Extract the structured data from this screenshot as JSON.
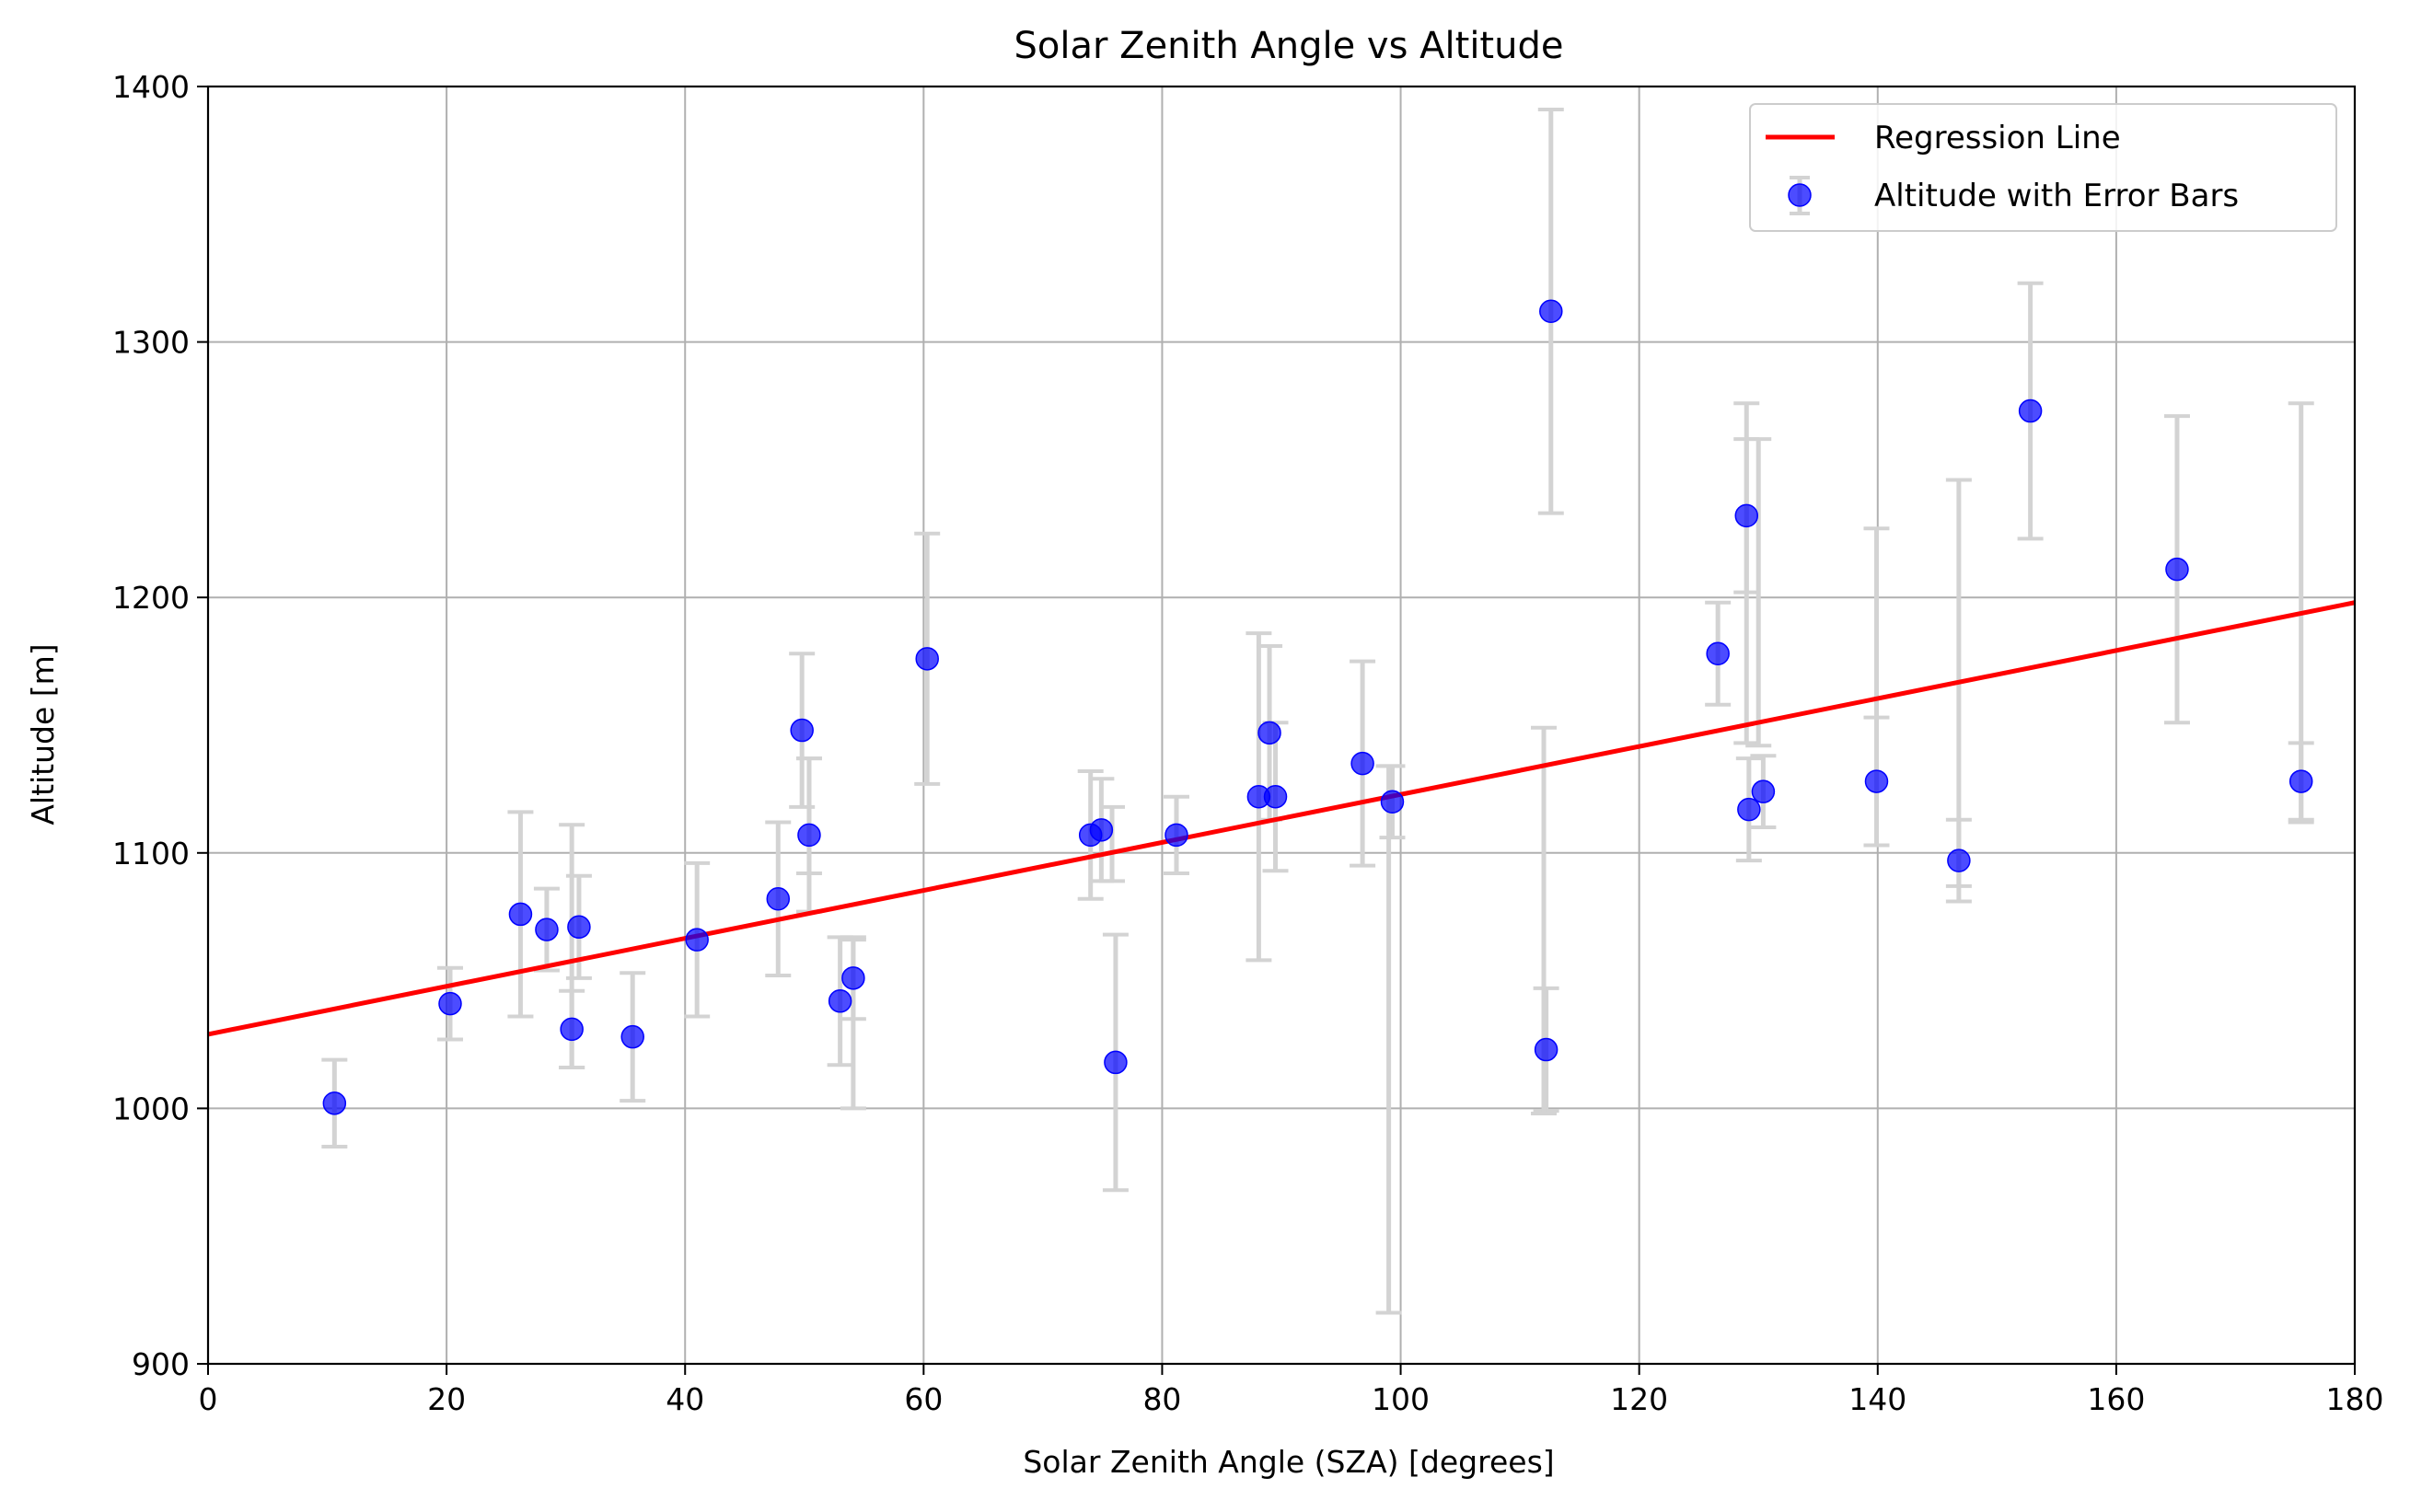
{
  "chart_data": {
    "type": "scatter",
    "title": "Solar Zenith Angle vs Altitude",
    "xlabel": "Solar Zenith Angle (SZA) [degrees]",
    "ylabel": "Altitude [m]",
    "xlim": [
      0,
      180
    ],
    "ylim": [
      900,
      1400
    ],
    "xticks": [
      0,
      20,
      40,
      60,
      80,
      100,
      120,
      140,
      160,
      180
    ],
    "yticks": [
      900,
      1000,
      1100,
      1200,
      1300,
      1400
    ],
    "grid": true,
    "legend_position": "top-right",
    "legend": {
      "line_label": "Regression Line",
      "points_label": "Altitude with Error Bars"
    },
    "colors": {
      "points": "#0000ff",
      "regression": "#ff0000",
      "error_bars": "#d3d3d3",
      "grid": "#b0b0b0"
    },
    "regression_line": {
      "x": [
        0,
        180
      ],
      "y": [
        1029,
        1198
      ]
    },
    "points": [
      {
        "x": 10.6,
        "y": 1002,
        "err": 17
      },
      {
        "x": 20.3,
        "y": 1041,
        "err": 14
      },
      {
        "x": 26.2,
        "y": 1076,
        "err": 40
      },
      {
        "x": 28.4,
        "y": 1070,
        "err": 16
      },
      {
        "x": 30.5,
        "y": 1031,
        "err": 15
      },
      {
        "x": 31.1,
        "y": 1071,
        "err": 20
      },
      {
        "x": 35.6,
        "y": 1028,
        "err": 25
      },
      {
        "x": 41.0,
        "y": 1066,
        "err": 30
      },
      {
        "x": 47.8,
        "y": 1082,
        "err": 30
      },
      {
        "x": 49.8,
        "y": 1148,
        "err": 30
      },
      {
        "x": 50.4,
        "y": 1107,
        "err": 30
      },
      {
        "x": 53.0,
        "y": 1042,
        "err": 25
      },
      {
        "x": 54.1,
        "y": 1051,
        "err": 16
      },
      {
        "x": 60.3,
        "y": 1176,
        "err": 49
      },
      {
        "x": 74.0,
        "y": 1107,
        "err": 25
      },
      {
        "x": 74.9,
        "y": 1109,
        "err": 20
      },
      {
        "x": 76.1,
        "y": 1018,
        "err": 50
      },
      {
        "x": 81.2,
        "y": 1107,
        "err": 15
      },
      {
        "x": 88.1,
        "y": 1122,
        "err": 64
      },
      {
        "x": 89.0,
        "y": 1147,
        "err": 34
      },
      {
        "x": 89.5,
        "y": 1122,
        "err": 29
      },
      {
        "x": 96.8,
        "y": 1135,
        "err": 40
      },
      {
        "x": 99.3,
        "y": 1120,
        "err": 14
      },
      {
        "x": 112.2,
        "y": 1023,
        "err": 24
      },
      {
        "x": 112.6,
        "y": 1312,
        "err": 79
      },
      {
        "x": 126.6,
        "y": 1178,
        "err": 20
      },
      {
        "x": 129.0,
        "y": 1232,
        "err": 30
      },
      {
        "x": 129.2,
        "y": 1117,
        "err": 20
      },
      {
        "x": 130.4,
        "y": 1124,
        "err": 14
      },
      {
        "x": 139.9,
        "y": 1128,
        "err": 25
      },
      {
        "x": 146.8,
        "y": 1097,
        "err": 16
      },
      {
        "x": 152.8,
        "y": 1273,
        "err": 50
      },
      {
        "x": 165.1,
        "y": 1211,
        "err": 60
      },
      {
        "x": 175.5,
        "y": 1128,
        "err": 15
      }
    ],
    "extra_error_bars": [
      {
        "x": 99.0,
        "low": 920,
        "high": 1134
      },
      {
        "x": 112.0,
        "low": 998,
        "high": 1149
      },
      {
        "x": 129.0,
        "low": 1143,
        "high": 1276
      },
      {
        "x": 130.0,
        "low": 1142,
        "high": 1262
      },
      {
        "x": 146.8,
        "low": 1087,
        "high": 1246
      },
      {
        "x": 175.5,
        "low": 1112,
        "high": 1276
      },
      {
        "x": 139.9,
        "low": 1103,
        "high": 1227
      },
      {
        "x": 54.1,
        "low": 1000,
        "high": 1066
      },
      {
        "x": 30.5,
        "low": 1016,
        "high": 1111
      },
      {
        "x": 50.4,
        "low": 1092,
        "high": 1137
      },
      {
        "x": 75.8,
        "low": 1089,
        "high": 1118
      }
    ]
  }
}
